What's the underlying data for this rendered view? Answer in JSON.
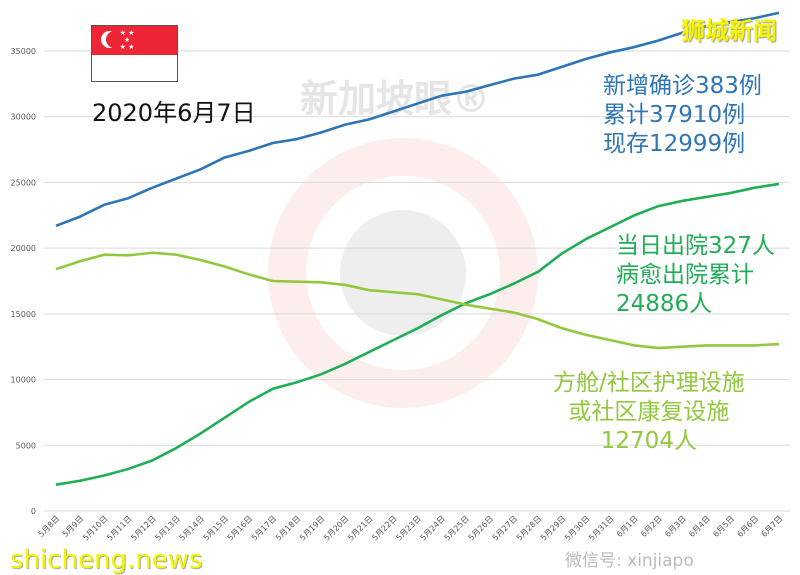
{
  "chart_data": {
    "type": "line",
    "title": "",
    "xlabel": "",
    "ylabel": "",
    "ylim": [
      0,
      35000
    ],
    "yticks": [
      0,
      5000,
      10000,
      15000,
      20000,
      25000,
      30000,
      35000
    ],
    "grid": true,
    "categories": [
      "5月8日",
      "5月9日",
      "5月10日",
      "5月11日",
      "5月12日",
      "5月13日",
      "5月14日",
      "5月15日",
      "5月16日",
      "5月17日",
      "5月18日",
      "5月19日",
      "5月20日",
      "5月21日",
      "5月22日",
      "5月23日",
      "5月24日",
      "5月25日",
      "5月26日",
      "5月27日",
      "5月28日",
      "5月29日",
      "5月30日",
      "5月31日",
      "6月1日",
      "6月2日",
      "6月3日",
      "6月4日",
      "6月5日",
      "6月6日",
      "6月7日"
    ],
    "series": [
      {
        "color": "#2e75b6",
        "values": [
          21700,
          22400,
          23300,
          23800,
          24600,
          25300,
          26000,
          26900,
          27400,
          28000,
          28300,
          28800,
          29400,
          29800,
          30400,
          31000,
          31600,
          31900,
          32400,
          32900,
          33200,
          33800,
          34400,
          34900,
          35300,
          35800,
          36400,
          36900,
          37200,
          37500,
          37910
        ]
      },
      {
        "color": "#1fae55",
        "values": [
          2000,
          2300,
          2700,
          3200,
          3850,
          4800,
          5900,
          7100,
          8300,
          9300,
          9800,
          10400,
          11200,
          12100,
          13000,
          13900,
          14900,
          15800,
          16500,
          17300,
          18200,
          19600,
          20700,
          21600,
          22500,
          23200,
          23600,
          23900,
          24200,
          24600,
          24886
        ]
      },
      {
        "color": "#92c83e",
        "values": [
          18400,
          19000,
          19500,
          19450,
          19650,
          19500,
          19100,
          18600,
          18000,
          17500,
          17450,
          17400,
          17200,
          16800,
          16650,
          16500,
          16100,
          15700,
          15400,
          15100,
          14600,
          13900,
          13400,
          13000,
          12600,
          12400,
          12500,
          12600,
          12600,
          12600,
          12704
        ]
      }
    ]
  },
  "header": {
    "date": "2020年6月7日",
    "flag": "singapore-flag"
  },
  "annotations": {
    "confirmed": [
      "新增确诊383例",
      "累计37910例",
      "现存12999例"
    ],
    "discharged": [
      "当日出院327人",
      "病愈出院累计",
      "24886人"
    ],
    "community": [
      "方舱/社区护理设施",
      "或社区康复设施",
      "12704人"
    ]
  },
  "watermarks": {
    "top_right": "狮城新闻",
    "bottom_left": "shicheng.news",
    "wechat": "微信号: xinjiapo",
    "logo": "新加坡眼®"
  }
}
